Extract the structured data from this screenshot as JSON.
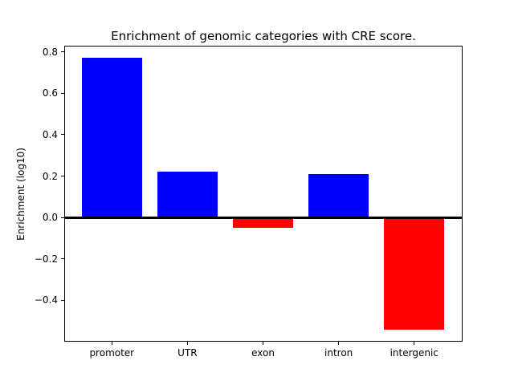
{
  "figure": {
    "background": "#ffffff"
  },
  "chart_data": {
    "type": "bar",
    "title": "Enrichment of genomic categories with CRE score.",
    "xlabel": "",
    "ylabel": "Enrichment (log10)",
    "categories": [
      "promoter",
      "UTR",
      "exon",
      "intron",
      "intergenic"
    ],
    "values": [
      0.77,
      0.22,
      -0.05,
      0.21,
      -0.54
    ],
    "bar_colors": [
      "#0000ff",
      "#0000ff",
      "#ff0000",
      "#0000ff",
      "#ff0000"
    ],
    "positive_color": "#0000ff",
    "negative_color": "#ff0000",
    "bar_width_units": 0.8,
    "xlim": [
      -0.63,
      4.64
    ],
    "ylim": [
      -0.6,
      0.83
    ],
    "yticks": [
      0.8,
      0.6,
      0.4,
      0.2,
      0.0,
      -0.2,
      -0.4
    ],
    "ytick_labels": [
      "0.8",
      "0.6",
      "0.4",
      "0.2",
      "0.0",
      "−0.2",
      "−0.4"
    ],
    "zero_line": true,
    "zero_line_color": "#000000",
    "grid": false,
    "legend": null,
    "axis_color": "#000000"
  }
}
